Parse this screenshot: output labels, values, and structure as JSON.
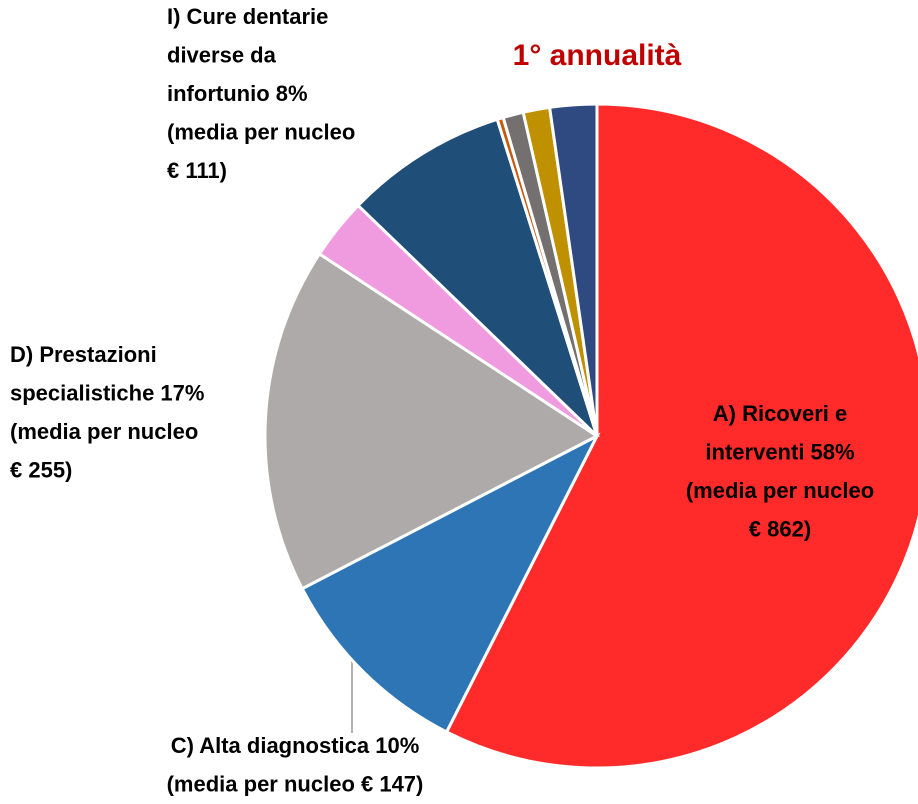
{
  "chart_data": {
    "type": "pie",
    "title": "1° annualità",
    "categories": [
      "A) Ricoveri e interventi",
      "C) Alta diagnostica",
      "D) Prestazioni specialistiche",
      null,
      "I) Cure dentarie diverse da infortunio",
      null,
      null,
      null,
      null
    ],
    "values": [
      58,
      10,
      17,
      3,
      8,
      0.3,
      1,
      1.3,
      2.3
    ],
    "colors": [
      "#ff2a2a",
      "#2e75b6",
      "#aeaaaa",
      "#f09ae0",
      "#1f4e79",
      "#c55a11",
      "#757070",
      "#bf9000",
      "#2f4a80"
    ],
    "labels": [
      [
        "A) Ricoveri e",
        "interventi 58%",
        "(media per nucleo",
        "€ 862)"
      ],
      [
        "C) Alta diagnostica 10%",
        "(media per nucleo € 147)"
      ],
      [
        "D) Prestazioni",
        "specialistiche 17%",
        "(media per nucleo",
        "€ 255)"
      ],
      null,
      [
        "I) Cure dentarie",
        "diverse da",
        "infortunio 8%",
        "(media per nucleo",
        "€ 111)"
      ],
      null,
      null,
      null,
      null
    ]
  }
}
